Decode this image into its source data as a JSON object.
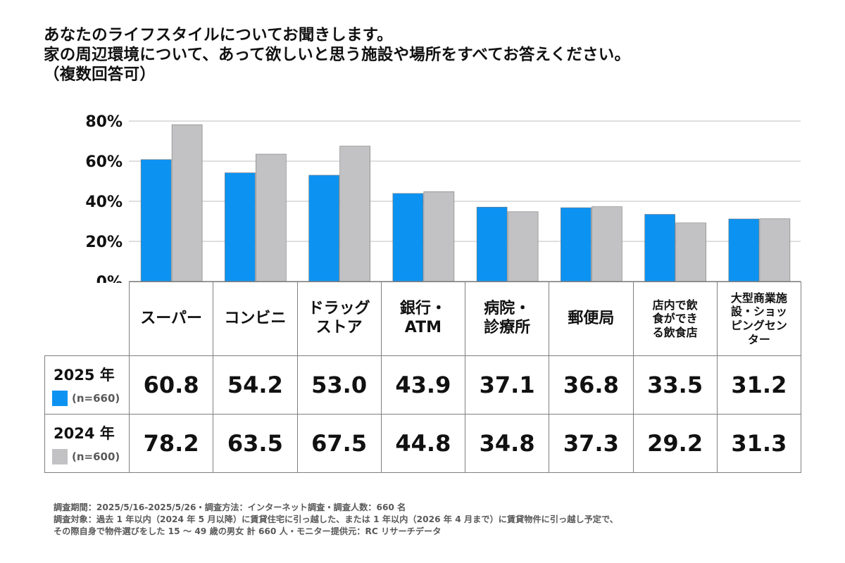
{
  "title": {
    "line1": "あなたのライフスタイルについてお聞きします。",
    "line2": "家の周辺環境について、あって欲しいと思う施設や場所をすべてお答えください。",
    "line3": "（複数回答可）"
  },
  "chart_data": {
    "type": "bar",
    "categories": [
      "スーパー",
      "コンビニ",
      "ドラッグストア",
      "銀行・ATM",
      "病院・診療所",
      "郵便局",
      "店内で飲食ができる飲食店",
      "大型商業施設・ショッピングセンター"
    ],
    "category_display": [
      [
        "スーパー"
      ],
      [
        "コンビニ"
      ],
      [
        "ドラッグ",
        "ストア"
      ],
      [
        "銀行・",
        "ATM"
      ],
      [
        "病院・",
        "診療所"
      ],
      [
        "郵便局"
      ],
      [
        "店内で飲",
        "食ができ",
        "る飲食店"
      ],
      [
        "大型商業施",
        "設・ショッ",
        "ピングセン",
        "ター"
      ]
    ],
    "series": [
      {
        "name": "2025年",
        "n": "(n=660)",
        "color": "#0c93f2",
        "values": [
          60.8,
          54.2,
          53.0,
          43.9,
          37.1,
          36.8,
          33.5,
          31.2
        ]
      },
      {
        "name": "2024年",
        "n": "(n=600)",
        "color": "#c2c1c3",
        "values": [
          78.2,
          63.5,
          67.5,
          44.8,
          34.8,
          37.3,
          29.2,
          31.3
        ]
      }
    ],
    "value_labels": [
      [
        "60.8",
        "54.2",
        "53.0",
        "43.9",
        "37.1",
        "36.8",
        "33.5",
        "31.2"
      ],
      [
        "78.2",
        "63.5",
        "67.5",
        "44.8",
        "34.8",
        "37.3",
        "29.2",
        "31.3"
      ]
    ],
    "yticks": [
      0,
      20,
      40,
      60,
      80
    ],
    "ytick_labels": [
      "0%",
      "20%",
      "40%",
      "60%",
      "80%"
    ],
    "ylim": [
      0,
      80
    ],
    "grid": true,
    "legend": "table-rows"
  },
  "footnote": {
    "line1": "調査期間：2025/5/16-2025/5/26・調査方法：インターネット調査・調査人数：660 名",
    "line2": "調査対象：過去 1 年以内（2024 年 5 月以降）に賃貸住宅に引っ越した、または 1 年以内（2026 年 4 月まで）に賃貸物件に引っ越し予定で、",
    "line3": "その際自身で物件選びをした 15 ～ 49 歳の男女 計 660 人・モニター提供元：RC リサーチデータ"
  }
}
